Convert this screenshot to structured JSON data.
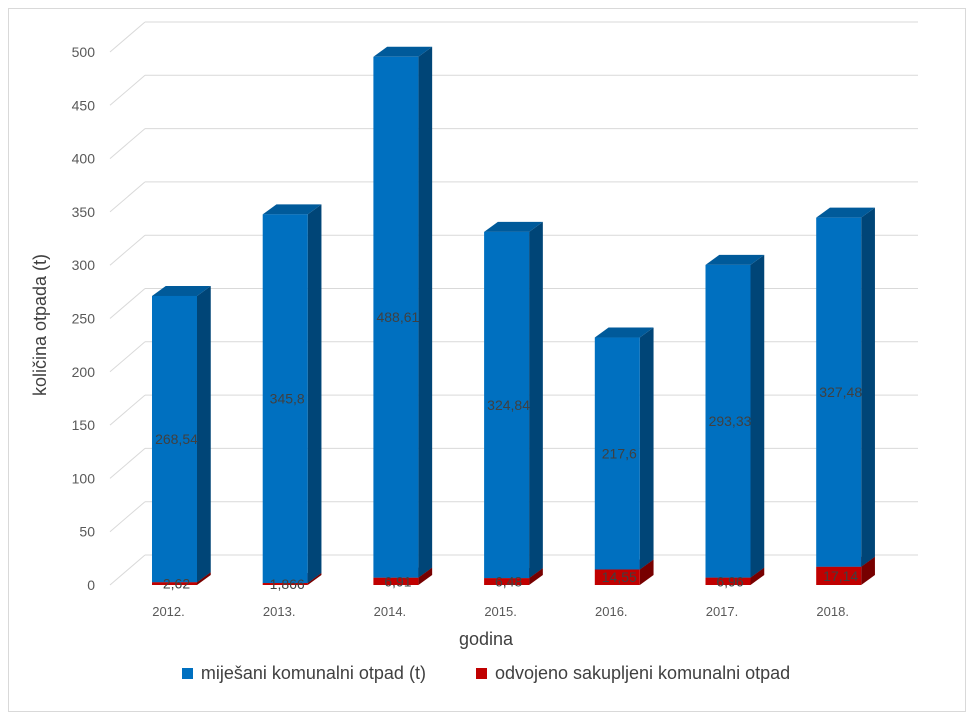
{
  "chart_data": {
    "type": "bar",
    "stacked": true,
    "style": "3d",
    "xlabel": "godina",
    "ylabel": "količina otpada (t)",
    "ylim": [
      0,
      500
    ],
    "yticks": [
      "0",
      "50",
      "100",
      "150",
      "200",
      "250",
      "300",
      "350",
      "400",
      "450",
      "500"
    ],
    "categories": [
      "2012.",
      "2013.",
      "2014.",
      "2015.",
      "2016.",
      "2017.",
      "2018."
    ],
    "grid": true,
    "legend_position": "bottom",
    "series": [
      {
        "name": "odvojeno sakupljeni komunalni otpad",
        "color": "#c00000",
        "values": [
          2.62,
          1.866,
          6.91,
          6.48,
          14.55,
          6.96,
          17.14
        ],
        "labels": [
          "2,62",
          "1,866",
          "6,91",
          "6,48",
          "14,55",
          "6,96",
          "17,14"
        ]
      },
      {
        "name": "miješani komunalni otpad (t)",
        "color": "#0070c0",
        "values": [
          268.54,
          345.8,
          488.61,
          324.84,
          217.6,
          293.33,
          327.48
        ],
        "labels": [
          "268,54",
          "345,8",
          "488,61",
          "324,84",
          "217,6",
          "293,33",
          "327,48"
        ]
      }
    ]
  }
}
